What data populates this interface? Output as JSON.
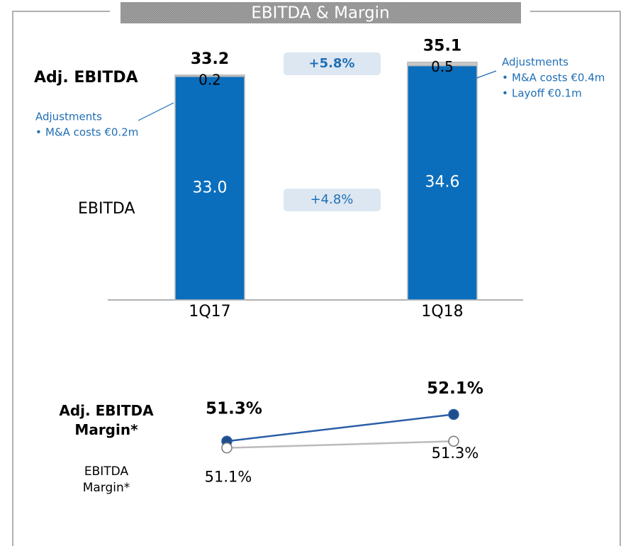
{
  "chart_data": [
    {
      "type": "bar",
      "stacked": true,
      "title": "EBITDA & Margin",
      "categories": [
        "1Q17",
        "1Q18"
      ],
      "series": [
        {
          "name": "EBITDA",
          "color": "#0a6ebd",
          "values": [
            33.0,
            34.6
          ],
          "value_labels": [
            "33.0",
            "34.6"
          ]
        },
        {
          "color": "#c8c8c8",
          "values": [
            0.2,
            0.5
          ]
        }
      ],
      "totals": {
        "name": "Adj. EBITDA",
        "values": [
          33.2,
          35.1
        ]
      },
      "growth": [
        {
          "label": "+5.8%",
          "row": "totals"
        },
        {
          "label": "+4.8%",
          "row": "EBITDA"
        }
      ],
      "annotations": [
        {
          "title": "Adjustments",
          "items": [
            "M&A costs €0.2m"
          ]
        },
        {
          "title": "Adjustments",
          "items": [
            "M&A costs €0.4m",
            "Layoff €0.1m"
          ]
        }
      ],
      "ylim": [
        0,
        38
      ]
    },
    {
      "type": "line",
      "series": [
        {
          "name": "Adj. EBITDA Margin*",
          "color": "#2a5ea8",
          "values": [
            51.3,
            52.1
          ],
          "value_labels": [
            "51.3%",
            "52.1%"
          ]
        },
        {
          "name": "EBITDA Margin*",
          "color": "#bbbbbb",
          "values": [
            51.1,
            51.3
          ],
          "value_labels": [
            "51.1%",
            "51.3%"
          ]
        }
      ],
      "ylim": [
        50.5,
        52.3
      ]
    }
  ]
}
